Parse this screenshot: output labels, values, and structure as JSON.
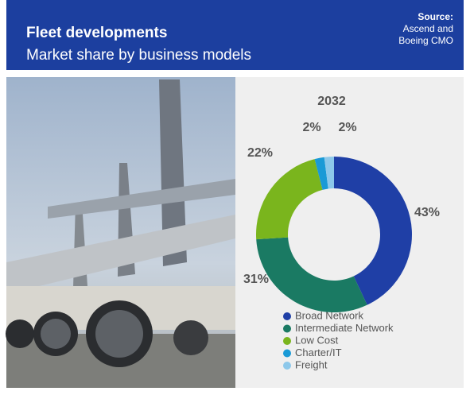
{
  "chart_data": {
    "type": "pie",
    "title": "Fleet developments",
    "subtitle": "Market share by business models",
    "source_heading": "Source:",
    "source_lines": [
      "Ascend and",
      "Boeing CMO"
    ],
    "year": "2032",
    "categories": [
      "Broad Network",
      "Intermediate Network",
      "Low Cost",
      "Charter/IT",
      "Freight"
    ],
    "values": [
      43,
      31,
      22,
      2,
      2
    ],
    "value_labels": [
      "43%",
      "31%",
      "22%",
      "2%",
      "2%"
    ],
    "colors": [
      "#1f3fa6",
      "#1a7a63",
      "#7ab51d",
      "#1a9ad6",
      "#8dc8ea"
    ]
  }
}
